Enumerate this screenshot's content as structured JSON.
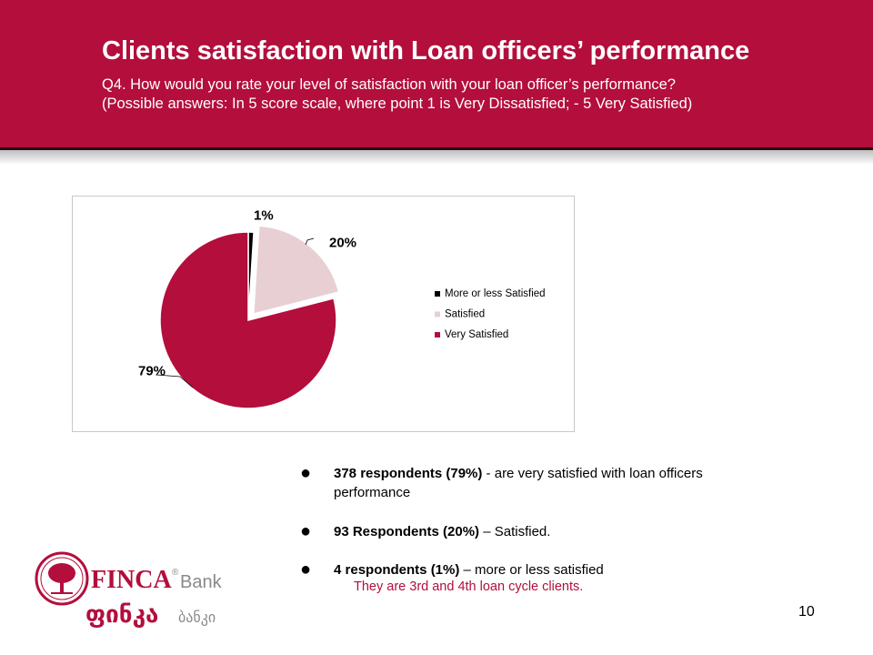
{
  "slide": {
    "title": "Clients satisfaction with Loan officers’ performance",
    "question": "Q4. How would you rate your level of satisfaction with your loan officer’s performance?",
    "answers_note": "(Possible answers: In 5 score scale, where point 1 is Very Dissatisfied; - 5 Very Satisfied)",
    "page_number": "10",
    "accent_color": "#b30e3c"
  },
  "bullets": [
    {
      "bold": "378 respondents (79%)",
      "text": " - are very satisfied with loan officers performance"
    },
    {
      "bold": "93 Respondents (20%)",
      "text": " – Satisfied."
    },
    {
      "bold": "4 respondents (1%)",
      "text": " – more or less satisfied"
    }
  ],
  "note": "They are 3rd and 4th loan cycle clients.",
  "logo": {
    "wordmark": "FINCA",
    "wordmark_suffix": "Bank",
    "georgian_wordmark": "ფინკა",
    "georgian_suffix": "ბანკი",
    "registered_mark": "®",
    "icon": "tree-logo-icon"
  },
  "chart_data": {
    "type": "pie",
    "title": "",
    "slices": [
      {
        "label": "More or less Satisfied",
        "value": 1,
        "data_label": "1%",
        "color": "#000000"
      },
      {
        "label": "Satisfied",
        "value": 20,
        "data_label": "20%",
        "color": "#e8cfd4",
        "exploded": true
      },
      {
        "label": "Very Satisfied",
        "value": 79,
        "data_label": "79%",
        "color": "#b30e3c"
      }
    ],
    "legend_position": "right"
  }
}
